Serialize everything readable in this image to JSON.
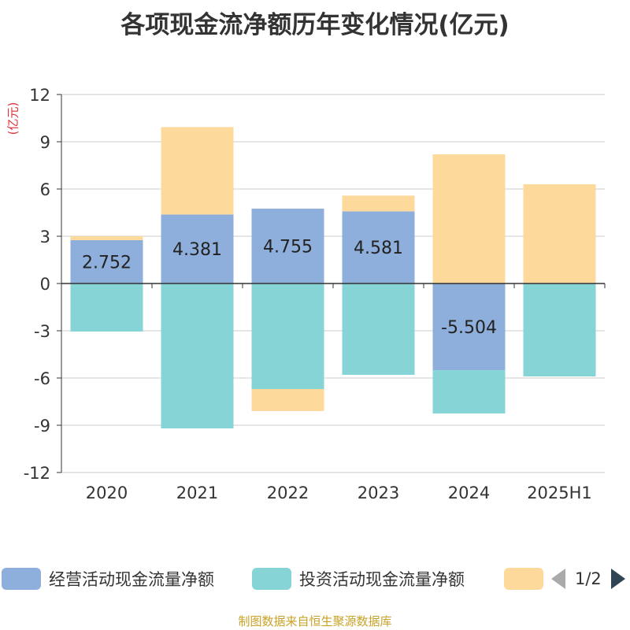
{
  "chart_data": {
    "type": "bar",
    "stacked": true,
    "title": "各项现金流净额历年变化情况(亿元)",
    "ylabel": "(亿元)",
    "categories": [
      "2020",
      "2021",
      "2022",
      "2023",
      "2024",
      "2025H1"
    ],
    "ylim": [
      -12,
      12
    ],
    "yticks": [
      12,
      9,
      6,
      3,
      0,
      -3,
      -6,
      -9,
      -12
    ],
    "grid": true,
    "legend_position": "bottom",
    "series": [
      {
        "name": "经营活动现金流量净额",
        "color": "#8eaedb",
        "values": [
          2.752,
          4.381,
          4.755,
          4.581,
          -5.504,
          -0.0
        ],
        "labels": [
          "2.752",
          "4.381",
          "4.755",
          "4.581",
          "-5.504",
          ""
        ]
      },
      {
        "name": "投资活动现金流量净额",
        "color": "#86d4d6",
        "values": [
          -3.05,
          -9.2,
          -6.7,
          -5.8,
          -2.75,
          -5.9
        ],
        "labels": [
          "",
          "",
          "",
          "",
          "",
          ""
        ]
      },
      {
        "name": "",
        "color": "#fdd99b",
        "values": [
          0.25,
          5.55,
          -1.4,
          1.0,
          8.2,
          6.3
        ],
        "labels": [
          "",
          "",
          "",
          "",
          "",
          ""
        ]
      }
    ]
  },
  "legend": {
    "items": [
      {
        "label": "经营活动现金流量净额",
        "color": "#8eaedb"
      },
      {
        "label": "投资活动现金流量净额",
        "color": "#86d4d6"
      },
      {
        "label": "",
        "color": "#fdd99b"
      }
    ],
    "page": "1/2"
  },
  "source": "制图数据来自恒生聚源数据库"
}
